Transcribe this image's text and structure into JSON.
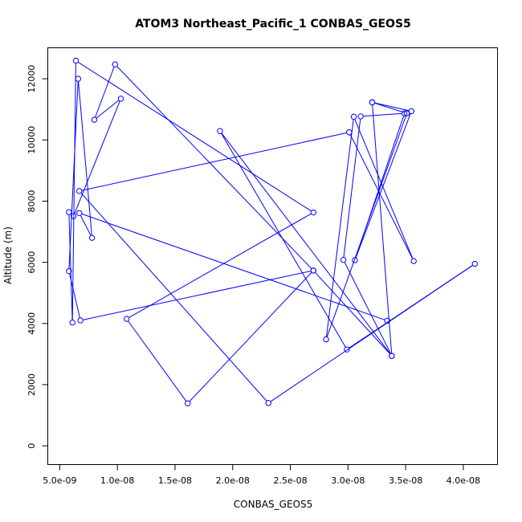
{
  "chart_data": {
    "type": "line",
    "title": "ATOM3 Northeast_Pacific_1 CONBAS_GEOS5",
    "xlabel": "CONBAS_GEOS5",
    "ylabel": "Altitude (m)",
    "xlim": [
      4e-09,
      4.3e-08
    ],
    "ylim": [
      -600,
      13000
    ],
    "x_ticks": [
      {
        "value": 5e-09,
        "label": "5.0e-09"
      },
      {
        "value": 1e-08,
        "label": "1.0e-08"
      },
      {
        "value": 1.5e-08,
        "label": "1.5e-08"
      },
      {
        "value": 2e-08,
        "label": "2.0e-08"
      },
      {
        "value": 2.5e-08,
        "label": "2.5e-08"
      },
      {
        "value": 3e-08,
        "label": "3.0e-08"
      },
      {
        "value": 3.5e-08,
        "label": "3.5e-08"
      },
      {
        "value": 4e-08,
        "label": "4.0e-08"
      }
    ],
    "y_ticks": [
      {
        "value": 0,
        "label": "0"
      },
      {
        "value": 2000,
        "label": "2000"
      },
      {
        "value": 4000,
        "label": "4000"
      },
      {
        "value": 6000,
        "label": "6000"
      },
      {
        "value": 8000,
        "label": "8000"
      },
      {
        "value": 10000,
        "label": "10000"
      },
      {
        "value": 12000,
        "label": "12000"
      }
    ],
    "series": [
      {
        "color": "#0000ff",
        "marker": "open-circle",
        "points": [
          {
            "x": 3.21e-08,
            "y": 11230
          },
          {
            "x": 3.55e-08,
            "y": 10940
          },
          {
            "x": 3.06e-08,
            "y": 6070
          },
          {
            "x": 3.49e-08,
            "y": 10870
          },
          {
            "x": 3.11e-08,
            "y": 10770
          },
          {
            "x": 2.96e-08,
            "y": 6080
          },
          {
            "x": 3.38e-08,
            "y": 2940
          },
          {
            "x": 1.89e-08,
            "y": 10290
          },
          {
            "x": 2.99e-08,
            "y": 3150
          },
          {
            "x": 4.1e-08,
            "y": 5950
          },
          {
            "x": 2.31e-08,
            "y": 1400
          },
          {
            "x": 6.7e-09,
            "y": 8330
          },
          {
            "x": 3.01e-08,
            "y": 10250
          },
          {
            "x": 3.57e-08,
            "y": 6040
          },
          {
            "x": 3.05e-08,
            "y": 10760
          },
          {
            "x": 2.81e-08,
            "y": 3480
          },
          {
            "x": 3.51e-08,
            "y": 10870
          },
          {
            "x": 3.21e-08,
            "y": 11230
          },
          {
            "x": 3.38e-08,
            "y": 2940
          },
          {
            "x": 2.7e-08,
            "y": 5730
          },
          {
            "x": 1.61e-08,
            "y": 1390
          },
          {
            "x": 1.08e-08,
            "y": 4150
          },
          {
            "x": 2.7e-08,
            "y": 7630
          },
          {
            "x": 6.4e-09,
            "y": 12590
          },
          {
            "x": 6.1e-09,
            "y": 4030
          },
          {
            "x": 5.8e-09,
            "y": 7640
          },
          {
            "x": 6.2e-09,
            "y": 7510
          },
          {
            "x": 1.03e-08,
            "y": 11350
          },
          {
            "x": 8e-09,
            "y": 10660
          },
          {
            "x": 9.8e-09,
            "y": 12470
          },
          {
            "x": 2.7e-08,
            "y": 5730
          },
          {
            "x": 6.8e-09,
            "y": 4100
          },
          {
            "x": 5.8e-09,
            "y": 5710
          },
          {
            "x": 6.6e-09,
            "y": 12000
          },
          {
            "x": 7.8e-09,
            "y": 6800
          },
          {
            "x": 6.7e-09,
            "y": 7610
          },
          {
            "x": 3.34e-08,
            "y": 4090
          }
        ]
      }
    ]
  }
}
